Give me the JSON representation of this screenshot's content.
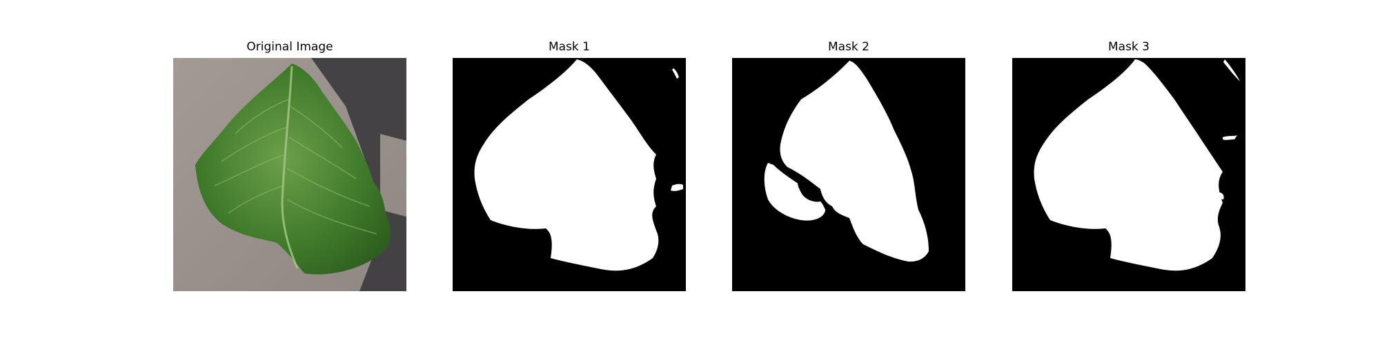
{
  "figure": {
    "panels": [
      {
        "title": "Original Image",
        "content": "leaf-photo"
      },
      {
        "title": "Mask 1",
        "content": "binary-mask"
      },
      {
        "title": "Mask 2",
        "content": "binary-mask"
      },
      {
        "title": "Mask 3",
        "content": "binary-mask"
      }
    ]
  },
  "colors": {
    "background": "#ffffff",
    "mask_background": "#000000",
    "mask_foreground": "#ffffff",
    "leaf_green": "#3f7a2a",
    "leaf_highlight": "#7fae5a",
    "ground_gray": "#9a918c",
    "shadow_dark": "#3b3a3c"
  }
}
